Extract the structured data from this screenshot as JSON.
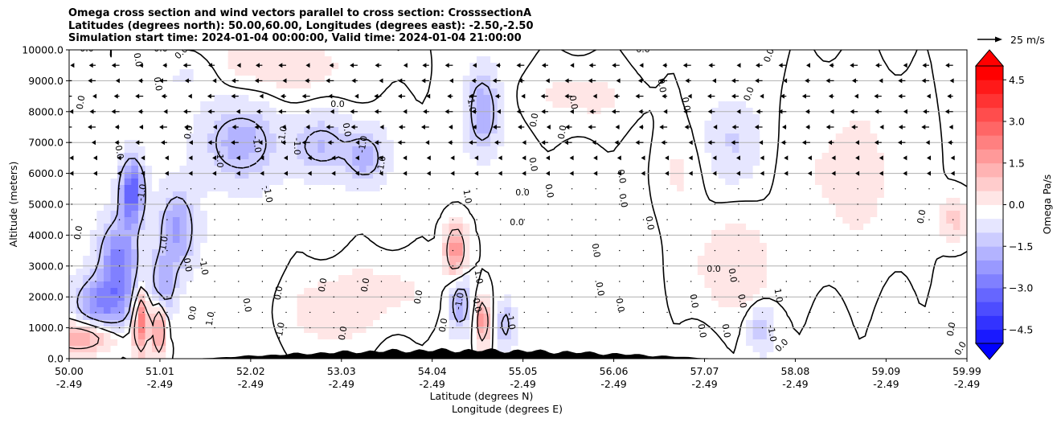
{
  "title_lines": [
    "Omega cross section and wind vectors parallel to cross section: CrosssectionA",
    "Latitudes (degrees north): 50.00,60.00, Longitudes (degrees east): -2.50,-2.50",
    "Simulation start time: 2024-01-04 00:00:00, Valid time: 2024-01-04 21:00:00"
  ],
  "chart_data": {
    "type": "heatmap",
    "subtype": "cross-section contour with wind vectors",
    "xlabel_1": "Latitude (degrees N)",
    "xlabel_2": "Longitude (degrees E)",
    "ylabel": "Altitude (meters)",
    "ylim": [
      0,
      10000
    ],
    "xlim": [
      50.0,
      59.99
    ],
    "yticks": [
      0,
      1000,
      2000,
      3000,
      4000,
      5000,
      6000,
      7000,
      8000,
      9000,
      10000
    ],
    "ytick_labels": [
      "0.0",
      "1000.0",
      "2000.0",
      "3000.0",
      "4000.0",
      "5000.0",
      "6000.0",
      "7000.0",
      "8000.0",
      "9000.0",
      "10000.0"
    ],
    "xticks": [
      {
        "lat": "50.00",
        "lon": "-2.49",
        "value": 50.0
      },
      {
        "lat": "51.01",
        "lon": "-2.49",
        "value": 51.01
      },
      {
        "lat": "52.02",
        "lon": "-2.49",
        "value": 52.02
      },
      {
        "lat": "53.03",
        "lon": "-2.49",
        "value": 53.03
      },
      {
        "lat": "54.04",
        "lon": "-2.49",
        "value": 54.04
      },
      {
        "lat": "55.05",
        "lon": "-2.49",
        "value": 55.05
      },
      {
        "lat": "56.06",
        "lon": "-2.49",
        "value": 56.06
      },
      {
        "lat": "57.07",
        "lon": "-2.49",
        "value": 57.07
      },
      {
        "lat": "58.08",
        "lon": "-2.49",
        "value": 58.08
      },
      {
        "lat": "59.09",
        "lon": "-2.49",
        "value": 59.09
      },
      {
        "lat": "59.99",
        "lon": "-2.49",
        "value": 59.99
      }
    ],
    "colorbar": {
      "label": "Omega Pa/s",
      "min": -5.0,
      "max": 5.0,
      "step": 0.5,
      "ticks": [
        -4.5,
        -3.0,
        -1.5,
        0.0,
        1.5,
        3.0,
        4.5
      ],
      "tick_labels": [
        "−4.5",
        "−3.0",
        "−1.5",
        "0.0",
        "1.5",
        "3.0",
        "4.5"
      ],
      "extend": "both",
      "negative_color": "#0000ff",
      "positive_color": "#ff0000",
      "zero_color": "#ffffff"
    },
    "contour_labels": [
      "0.0",
      "-1.0",
      "1.0"
    ],
    "vector_key": {
      "label": "25 m/s",
      "speed": 25
    },
    "blobs": [
      {
        "lat": 50.12,
        "alt": 700,
        "lat_spread": 0.25,
        "alt_spread": 350,
        "omega": 2.0
      },
      {
        "lat": 50.7,
        "alt": 5400,
        "lat_spread": 0.09,
        "alt_spread": 700,
        "omega": -3.3
      },
      {
        "lat": 50.55,
        "alt": 3200,
        "lat_spread": 0.15,
        "alt_spread": 900,
        "omega": -2.4
      },
      {
        "lat": 50.38,
        "alt": 1800,
        "lat_spread": 0.22,
        "alt_spread": 600,
        "omega": -2.2
      },
      {
        "lat": 51.2,
        "alt": 4200,
        "lat_spread": 0.14,
        "alt_spread": 900,
        "omega": -1.9
      },
      {
        "lat": 51.05,
        "alt": 2400,
        "lat_spread": 0.1,
        "alt_spread": 700,
        "omega": -1.6
      },
      {
        "lat": 50.8,
        "alt": 1200,
        "lat_spread": 0.06,
        "alt_spread": 700,
        "omega": 2.8
      },
      {
        "lat": 51.0,
        "alt": 1000,
        "lat_spread": 0.05,
        "alt_spread": 600,
        "omega": 2.5
      },
      {
        "lat": 51.9,
        "alt": 7000,
        "lat_spread": 0.28,
        "alt_spread": 900,
        "omega": -1.5
      },
      {
        "lat": 52.8,
        "alt": 6900,
        "lat_spread": 0.25,
        "alt_spread": 700,
        "omega": -1.2
      },
      {
        "lat": 53.3,
        "alt": 6500,
        "lat_spread": 0.15,
        "alt_spread": 600,
        "omega": -1.4
      },
      {
        "lat": 52.9,
        "alt": 1500,
        "lat_spread": 0.3,
        "alt_spread": 700,
        "omega": 0.6
      },
      {
        "lat": 54.3,
        "alt": 3500,
        "lat_spread": 0.08,
        "alt_spread": 600,
        "omega": 2.2
      },
      {
        "lat": 54.35,
        "alt": 1800,
        "lat_spread": 0.08,
        "alt_spread": 600,
        "omega": -1.7
      },
      {
        "lat": 54.6,
        "alt": 8000,
        "lat_spread": 0.12,
        "alt_spread": 900,
        "omega": -1.7
      },
      {
        "lat": 54.6,
        "alt": 1200,
        "lat_spread": 0.05,
        "alt_spread": 500,
        "omega": 2.2
      },
      {
        "lat": 54.85,
        "alt": 1100,
        "lat_spread": 0.07,
        "alt_spread": 500,
        "omega": -1.2
      },
      {
        "lat": 53.5,
        "alt": 2200,
        "lat_spread": 0.4,
        "alt_spread": 700,
        "omega": 0.4
      },
      {
        "lat": 57.4,
        "alt": 3000,
        "lat_spread": 0.3,
        "alt_spread": 1000,
        "omega": 0.7
      },
      {
        "lat": 57.7,
        "alt": 1000,
        "lat_spread": 0.1,
        "alt_spread": 500,
        "omega": -1.0
      },
      {
        "lat": 57.4,
        "alt": 7000,
        "lat_spread": 0.2,
        "alt_spread": 900,
        "omega": -0.8
      },
      {
        "lat": 56.8,
        "alt": 6000,
        "lat_spread": 0.2,
        "alt_spread": 1000,
        "omega": 0.3
      },
      {
        "lat": 58.7,
        "alt": 6000,
        "lat_spread": 0.5,
        "alt_spread": 2000,
        "omega": 0.4
      },
      {
        "lat": 59.85,
        "alt": 4500,
        "lat_spread": 0.1,
        "alt_spread": 500,
        "omega": 1.0
      },
      {
        "lat": 52.3,
        "alt": 9500,
        "lat_spread": 0.7,
        "alt_spread": 800,
        "omega": 0.5
      },
      {
        "lat": 51.3,
        "alt": 9200,
        "lat_spread": 0.3,
        "alt_spread": 500,
        "omega": -0.4
      },
      {
        "lat": 55.7,
        "alt": 8500,
        "lat_spread": 0.4,
        "alt_spread": 700,
        "omega": 0.4
      }
    ]
  }
}
